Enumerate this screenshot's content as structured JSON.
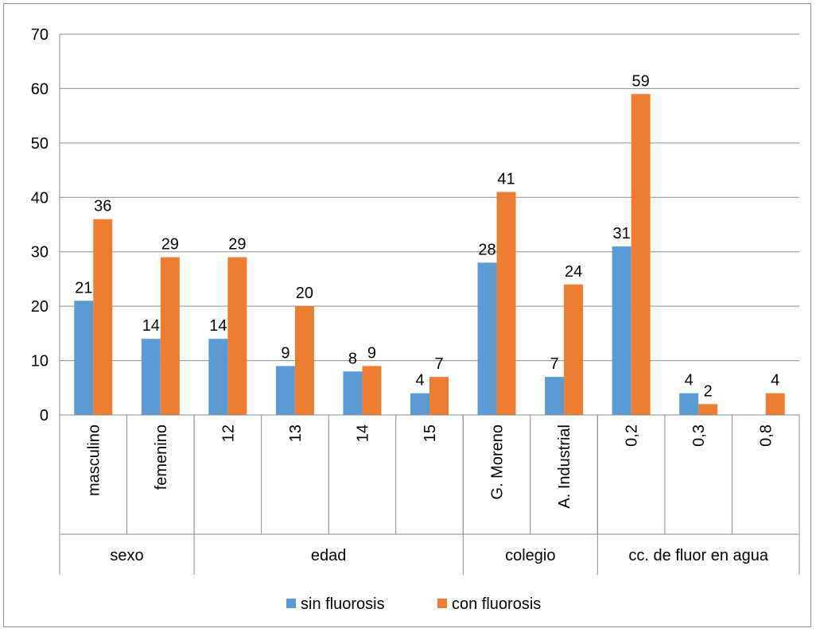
{
  "chart_data": {
    "type": "bar",
    "title": "",
    "xlabel": "",
    "ylabel": "",
    "ylim": [
      0,
      70
    ],
    "yticks": [
      0,
      10,
      20,
      30,
      40,
      50,
      60,
      70
    ],
    "grid": true,
    "legend_position": "bottom",
    "groups": [
      {
        "label": "sexo",
        "categories": [
          "masculino",
          "femenino"
        ]
      },
      {
        "label": "edad",
        "categories": [
          "12",
          "13",
          "14",
          "15"
        ]
      },
      {
        "label": "colegio",
        "categories": [
          "G. Moreno",
          "A. Industrial"
        ]
      },
      {
        "label": "cc. de fluor en agua",
        "categories": [
          "0,2",
          "0,3",
          "0,8"
        ]
      }
    ],
    "categories": [
      "masculino",
      "femenino",
      "12",
      "13",
      "14",
      "15",
      "G. Moreno",
      "A. Industrial",
      "0,2",
      "0,3",
      "0,8"
    ],
    "series": [
      {
        "name": "sin fluorosis",
        "color": "#5b9bd5",
        "values": [
          21,
          14,
          14,
          9,
          8,
          4,
          28,
          7,
          31,
          4,
          null
        ]
      },
      {
        "name": "con fluorosis",
        "color": "#ed7d31",
        "values": [
          36,
          29,
          29,
          20,
          9,
          7,
          41,
          24,
          59,
          2,
          4
        ]
      }
    ]
  }
}
